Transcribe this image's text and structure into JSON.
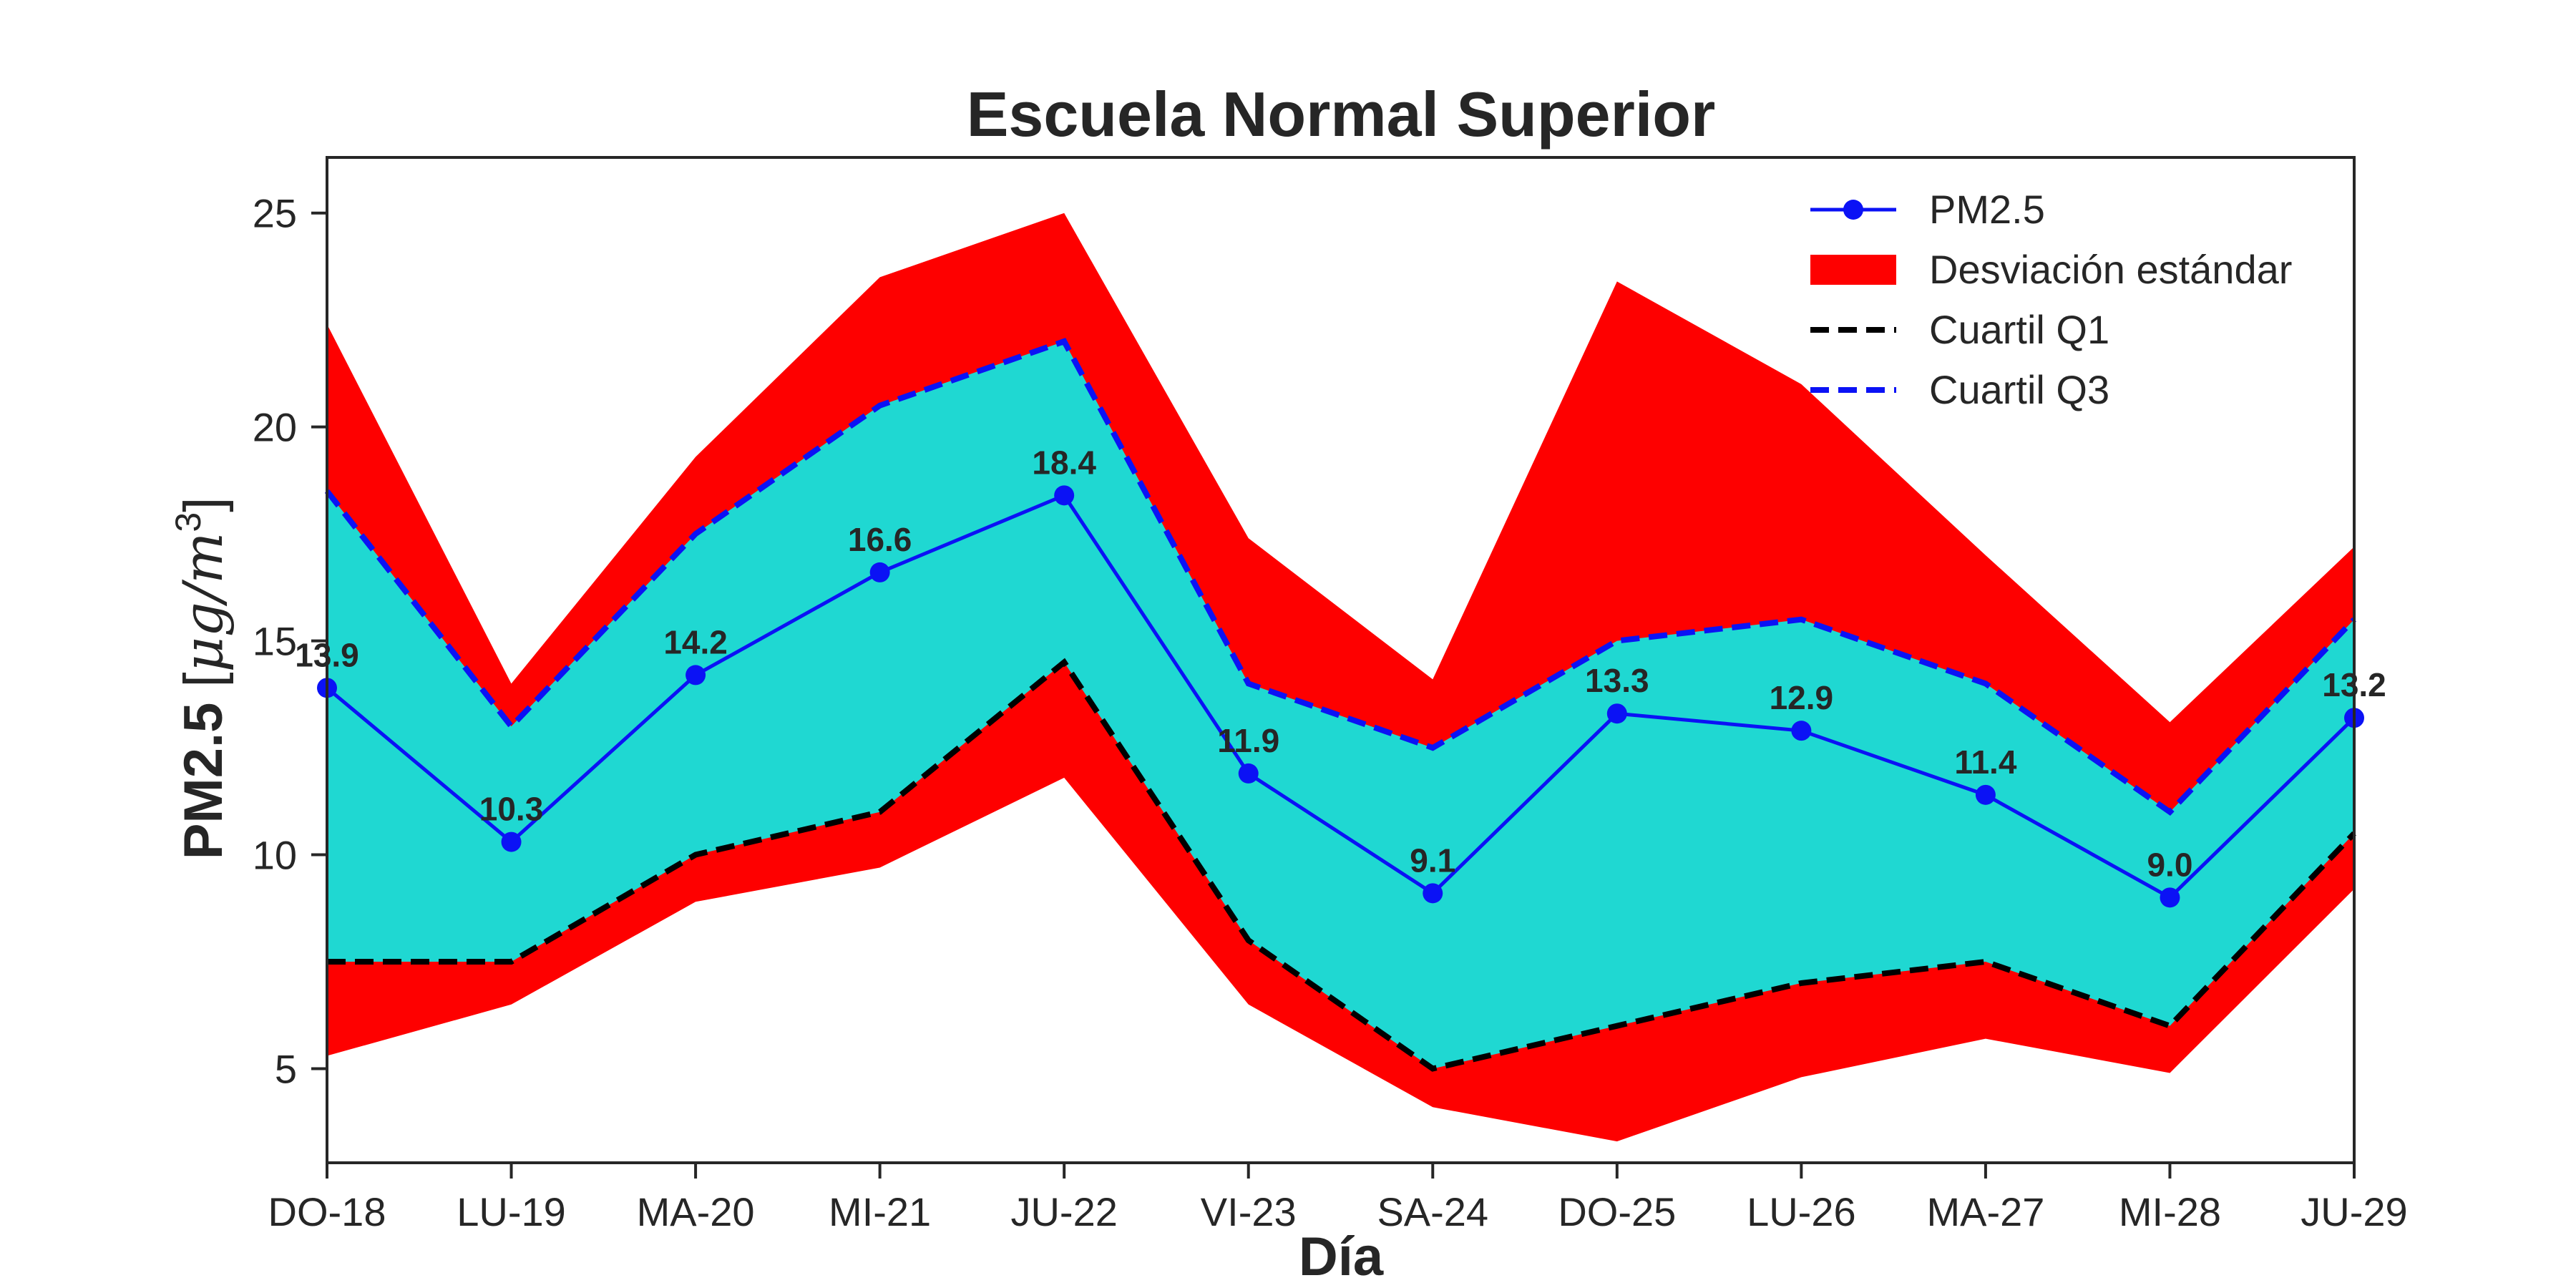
{
  "chart_data": {
    "type": "line",
    "title": "Escuela Normal Superior",
    "xlabel": "Día",
    "ylabel": {
      "main": "PM2.5 ",
      "unit_open": "[",
      "unit_italic": "μg/m",
      "unit_sup": "3",
      "unit_close": "]"
    },
    "categories": [
      "DO-18",
      "LU-19",
      "MA-20",
      "MI-21",
      "JU-22",
      "VI-23",
      "SA-24",
      "DO-25",
      "LU-26",
      "MA-27",
      "MI-28",
      "JU-29"
    ],
    "ylim": [
      2.8,
      26.3
    ],
    "yticks": [
      5,
      10,
      15,
      20,
      25
    ],
    "grid": false,
    "legend_position": "upper right",
    "series": [
      {
        "name": "PM2.5",
        "values": [
          13.9,
          10.3,
          14.2,
          16.6,
          18.4,
          11.9,
          9.1,
          13.3,
          12.9,
          11.4,
          9.0,
          13.2
        ],
        "data_labels": [
          "13.9",
          "10.3",
          "14.2",
          "16.6",
          "18.4",
          "11.9",
          "9.1",
          "13.3",
          "12.9",
          "11.4",
          "9.0",
          "13.2"
        ],
        "color": "#0b12f5"
      },
      {
        "name": "Cuartil Q1",
        "values": [
          7.5,
          7.5,
          10.0,
          11.0,
          14.5,
          8.0,
          5.0,
          6.0,
          7.0,
          7.5,
          6.0,
          10.5
        ],
        "color": "#000000"
      },
      {
        "name": "Cuartil Q3",
        "values": [
          18.5,
          13.0,
          17.5,
          20.5,
          22.0,
          14.0,
          12.5,
          15.0,
          15.5,
          14.0,
          11.0,
          15.5
        ],
        "color": "#0b12f5"
      }
    ],
    "std_band": {
      "name": "Desviación estándar",
      "upper": [
        22.4,
        14.0,
        19.3,
        23.5,
        25.0,
        17.4,
        14.1,
        23.4,
        21.0,
        17.0,
        13.1,
        17.2
      ],
      "lower": [
        5.3,
        6.5,
        8.9,
        9.7,
        11.8,
        6.5,
        4.1,
        3.3,
        4.8,
        5.7,
        4.9,
        9.2
      ],
      "color": "#fe0000"
    },
    "iqr_fill_color": "#1fd8d2",
    "legend": [
      "PM2.5",
      "Desviación estándar",
      "Cuartil Q1",
      "Cuartil Q3"
    ]
  }
}
